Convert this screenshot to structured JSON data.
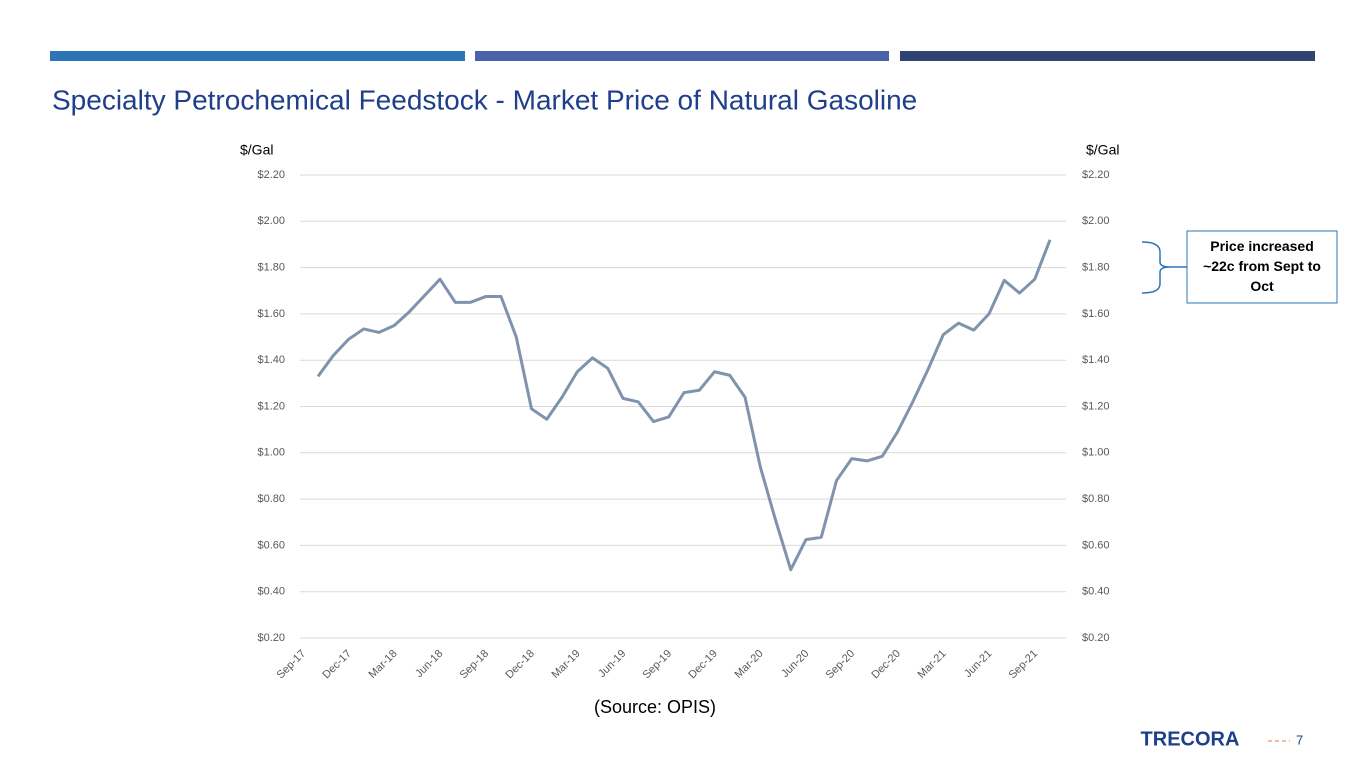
{
  "chart_data": {
    "type": "line",
    "title": "Specialty Petrochemical Feedstock - Market Price of Natural Gasoline",
    "y_label": "$/Gal",
    "y2_label": "$/Gal",
    "source": "(Source: OPIS)",
    "annotation": "Price increased ~22c from Sept to Oct",
    "categories": [
      "Sep-17",
      null,
      null,
      "Dec-17",
      null,
      null,
      "Mar-18",
      null,
      null,
      "Jun-18",
      null,
      null,
      "Sep-18",
      null,
      null,
      "Dec-18",
      null,
      null,
      "Mar-19",
      null,
      null,
      "Jun-19",
      null,
      null,
      "Sep-19",
      null,
      null,
      "Dec-19",
      null,
      null,
      "Mar-20",
      null,
      null,
      "Jun-20",
      null,
      null,
      "Sep-20",
      null,
      null,
      "Dec-20",
      null,
      null,
      "Mar-21",
      null,
      null,
      "Jun-21",
      null,
      null,
      "Sep-21"
    ],
    "series": [
      {
        "name": "Natural Gasoline",
        "color": "#7f93ad",
        "values": [
          1.33,
          1.42,
          1.49,
          1.535,
          1.52,
          1.55,
          1.61,
          1.68,
          1.75,
          1.65,
          1.65,
          1.675,
          1.675,
          1.5,
          1.19,
          1.145,
          1.24,
          1.35,
          1.41,
          1.365,
          1.235,
          1.22,
          1.135,
          1.155,
          1.26,
          1.27,
          1.35,
          1.335,
          1.24,
          0.94,
          0.71,
          0.495,
          0.625,
          0.635,
          0.88,
          0.975,
          0.965,
          0.985,
          1.09,
          1.22,
          1.36,
          1.51,
          1.56,
          1.53,
          1.6,
          1.745,
          1.69,
          1.75,
          1.92
        ]
      }
    ],
    "ylim": [
      0.2,
      2.2
    ],
    "yticks": [
      {
        "value": 0.2,
        "label": "$0.20"
      },
      {
        "value": 0.4,
        "label": "$0.40"
      },
      {
        "value": 0.6,
        "label": "$0.60"
      },
      {
        "value": 0.8,
        "label": "$0.80"
      },
      {
        "value": 1.0,
        "label": "$1.00"
      },
      {
        "value": 1.2,
        "label": "$1.20"
      },
      {
        "value": 1.4,
        "label": "$1.40"
      },
      {
        "value": 1.6,
        "label": "$1.60"
      },
      {
        "value": 1.8,
        "label": "$1.80"
      },
      {
        "value": 2.0,
        "label": "$2.00"
      },
      {
        "value": 2.2,
        "label": "$2.20"
      }
    ],
    "y2lim": [
      0.2,
      2.2
    ],
    "y2ticks": [
      {
        "value": 0.2,
        "label": "$0.20"
      },
      {
        "value": 0.4,
        "label": "$0.40"
      },
      {
        "value": 0.6,
        "label": "$0.60"
      },
      {
        "value": 0.8,
        "label": "$0.80"
      },
      {
        "value": 1.0,
        "label": "$1.00"
      },
      {
        "value": 1.2,
        "label": "$1.20"
      },
      {
        "value": 1.4,
        "label": "$1.40"
      },
      {
        "value": 1.6,
        "label": "$1.60"
      },
      {
        "value": 1.8,
        "label": "$1.80"
      },
      {
        "value": 2.0,
        "label": "$2.00"
      },
      {
        "value": 2.2,
        "label": "$2.20"
      }
    ],
    "grid": true,
    "logo": "TRECORA",
    "page_number": "7"
  }
}
